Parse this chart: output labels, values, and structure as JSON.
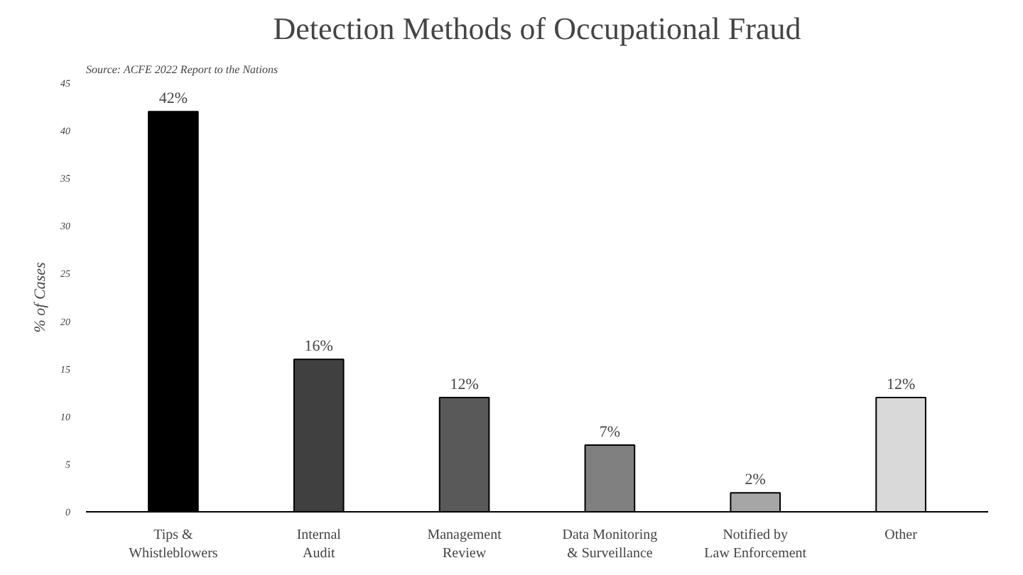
{
  "chart_data": {
    "type": "bar",
    "title": "Detection Methods of Occupational Fraud",
    "ylabel": "% of Cases",
    "annotations": [
      "Source: ACFE 2022 Report to the Nations"
    ],
    "categories": [
      "Tips &\nWhistleblowers",
      "Internal\nAudit",
      "Management\nReview",
      "Data Monitoring\n& Surveillance",
      "Notified by\nLaw Enforcement",
      "Other"
    ],
    "values": [
      42,
      16,
      12,
      7,
      2,
      12
    ],
    "colors": [
      "#000000",
      "#404040",
      "#595959",
      "#808080",
      "#a6a6a6",
      "#d9d9d9"
    ],
    "value_labels": [
      "42%",
      "16%",
      "12%",
      "7%",
      "2%",
      "12%"
    ],
    "ylim": [
      0,
      45
    ],
    "yticks": [
      0,
      5,
      10,
      15,
      20,
      25,
      30,
      35,
      40,
      45
    ],
    "grid": false
  }
}
